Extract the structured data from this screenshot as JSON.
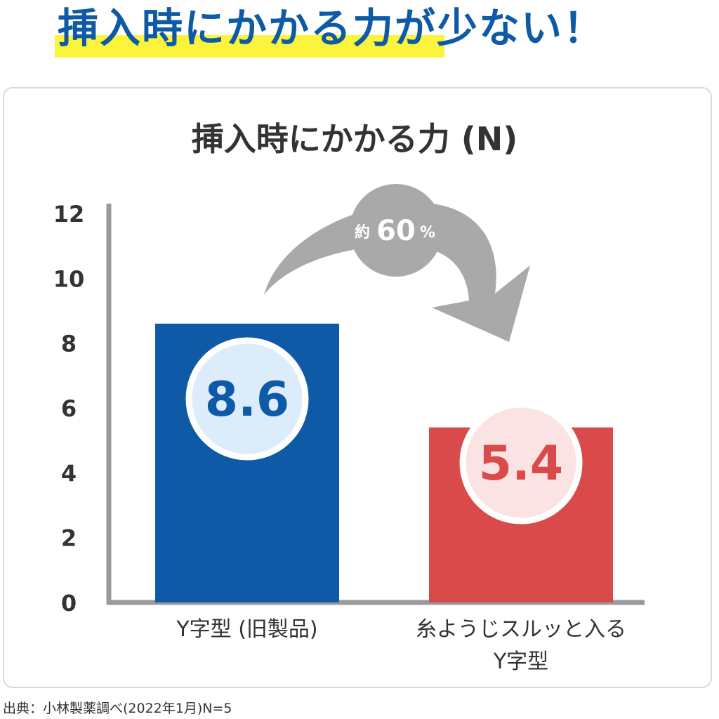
{
  "headline": "挿入時にかかる力が少ない！",
  "footnote": "出典：小林製薬調べ(2022年1月)N=5",
  "chart_data": {
    "type": "bar",
    "title": "挿入時にかかる力 (N)",
    "categories": [
      [
        "Y字型 (旧製品)"
      ],
      [
        "糸ようじスルッと入る",
        "Y字型"
      ]
    ],
    "values": [
      8.6,
      5.4
    ],
    "value_labels": [
      "8.6",
      "5.4"
    ],
    "ylim": [
      0,
      12
    ],
    "yticks": [
      "0",
      "2",
      "4",
      "6",
      "8",
      "10",
      "12"
    ],
    "grid": false,
    "colors": [
      "#0e5aa7",
      "#d94a4a"
    ],
    "label_circle_fills": [
      "#dcecfa",
      "#fbe3e3"
    ],
    "reduction_label": {
      "prefix": "約",
      "value": "60",
      "unit": "%"
    }
  }
}
